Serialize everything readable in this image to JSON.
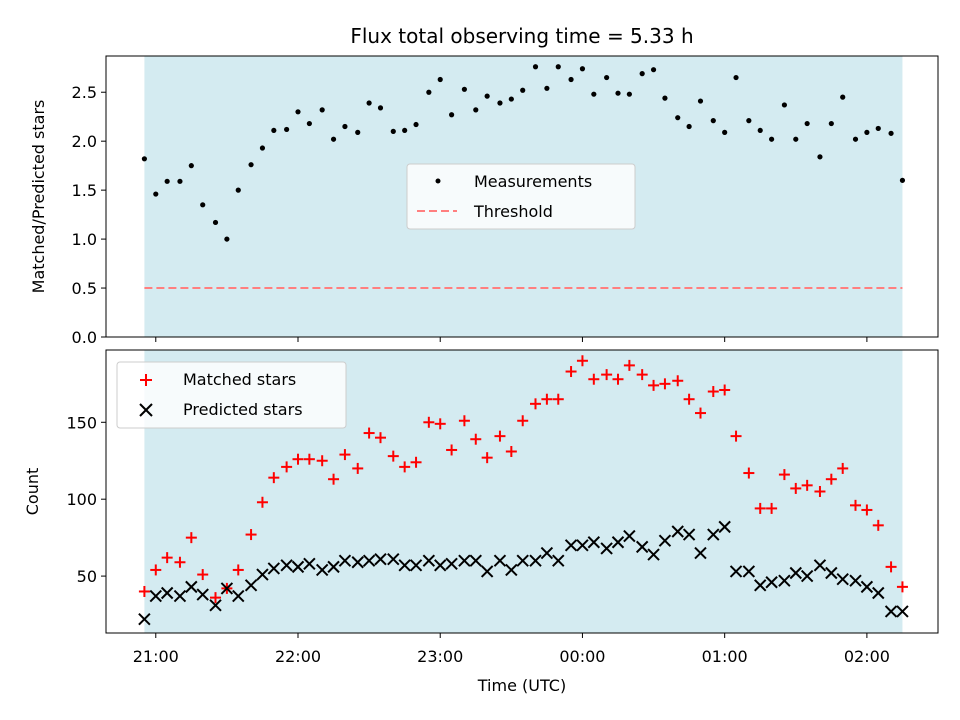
{
  "figure": {
    "title": "Flux total observing time = 5.33 h",
    "xlabel": "Time (UTC)",
    "xticks": [
      "21:00",
      "22:00",
      "23:00",
      "00:00",
      "01:00",
      "02:00"
    ]
  },
  "chart_data": [
    {
      "type": "scatter",
      "name": "ratio",
      "ylabel": "Matched/Predicted stars",
      "ylim": [
        0,
        2.87
      ],
      "yticks": [
        "0.0",
        "0.5",
        "1.0",
        "1.5",
        "2.0",
        "2.5"
      ],
      "xlim_hours": [
        20.65,
        26.5
      ],
      "shade_hours": [
        20.92,
        26.25
      ],
      "shade_color": "#d4ebf1",
      "threshold": 0.5,
      "legend": {
        "placement": "center",
        "measurements": "Measurements",
        "threshold": "Threshold"
      },
      "x_hours": [
        20.92,
        21.0,
        21.08,
        21.17,
        21.25,
        21.33,
        21.42,
        21.5,
        21.58,
        21.67,
        21.75,
        21.83,
        21.92,
        22.0,
        22.08,
        22.17,
        22.25,
        22.33,
        22.42,
        22.5,
        22.58,
        22.67,
        22.75,
        22.83,
        22.92,
        23.0,
        23.08,
        23.17,
        23.25,
        23.33,
        23.42,
        23.5,
        23.58,
        23.67,
        23.75,
        23.83,
        23.92,
        24.0,
        24.08,
        24.17,
        24.25,
        24.33,
        24.42,
        24.5,
        24.58,
        24.67,
        24.75,
        24.83,
        24.92,
        25.0,
        25.08,
        25.17,
        25.25,
        25.33,
        25.42,
        25.5,
        25.58,
        25.67,
        25.75,
        25.83,
        25.92,
        26.0,
        26.08,
        26.17,
        26.25
      ],
      "values": [
        1.82,
        1.46,
        1.59,
        1.59,
        1.75,
        1.35,
        1.17,
        1.0,
        1.5,
        1.76,
        1.93,
        2.11,
        2.12,
        2.3,
        2.18,
        2.32,
        2.02,
        2.15,
        2.09,
        2.39,
        2.34,
        2.1,
        2.11,
        2.17,
        2.5,
        2.63,
        2.27,
        2.53,
        2.32,
        2.46,
        2.39,
        2.43,
        2.52,
        2.76,
        2.54,
        2.76,
        2.63,
        2.74,
        2.48,
        2.65,
        2.49,
        2.48,
        2.69,
        2.73,
        2.44,
        2.24,
        2.15,
        2.41,
        2.21,
        2.09,
        2.65,
        2.21,
        2.11,
        2.02,
        2.37,
        2.02,
        2.18,
        1.84,
        2.18,
        2.45,
        2.02,
        2.09,
        2.13,
        2.08,
        1.6
      ],
      "colors": {
        "points": "#000000",
        "threshold": "#ff7f7f"
      }
    },
    {
      "type": "scatter",
      "name": "counts",
      "ylabel": "Count",
      "ylim": [
        13,
        197
      ],
      "yticks": [
        "50",
        "100",
        "150"
      ],
      "legend": {
        "placement": "top-left",
        "matched": "Matched stars",
        "predicted": "Predicted stars"
      },
      "x_hours": [
        20.92,
        21.0,
        21.08,
        21.17,
        21.25,
        21.33,
        21.42,
        21.5,
        21.58,
        21.67,
        21.75,
        21.83,
        21.92,
        22.0,
        22.08,
        22.17,
        22.25,
        22.33,
        22.42,
        22.5,
        22.58,
        22.67,
        22.75,
        22.83,
        22.92,
        23.0,
        23.08,
        23.17,
        23.25,
        23.33,
        23.42,
        23.5,
        23.58,
        23.67,
        23.75,
        23.83,
        23.92,
        24.0,
        24.08,
        24.17,
        24.25,
        24.33,
        24.42,
        24.5,
        24.58,
        24.67,
        24.75,
        24.83,
        24.92,
        25.0,
        25.08,
        25.17,
        25.25,
        25.33,
        25.42,
        25.5,
        25.58,
        25.67,
        25.75,
        25.83,
        25.92,
        26.0,
        26.08,
        26.17,
        26.25
      ],
      "series": [
        {
          "values": [
            40,
            54,
            62,
            59,
            75,
            51,
            36,
            42,
            54,
            77,
            98,
            114,
            121,
            126,
            126,
            125,
            113,
            129,
            120,
            143,
            140,
            128,
            121,
            124,
            150,
            149,
            132,
            151,
            139,
            127,
            141,
            131,
            151,
            162,
            165,
            165,
            183,
            190,
            178,
            181,
            178,
            187,
            181,
            174,
            175,
            177,
            165,
            156,
            170,
            171,
            141,
            117,
            94,
            94,
            116,
            107,
            109,
            105,
            113,
            120,
            96,
            93,
            83,
            56,
            43
          ],
          "marker": "plus",
          "color": "#ff0000"
        },
        {
          "values": [
            22,
            37,
            39,
            37,
            43,
            38,
            31,
            42,
            37,
            44,
            51,
            55,
            57,
            56,
            58,
            54,
            56,
            60,
            59,
            60,
            61,
            61,
            57,
            57,
            60,
            57,
            58,
            60,
            60,
            53,
            60,
            54,
            60,
            60,
            65,
            60,
            70,
            70,
            72,
            68,
            72,
            76,
            69,
            64,
            73,
            79,
            77,
            65,
            77,
            82,
            53,
            53,
            44,
            46,
            47,
            52,
            50,
            57,
            52,
            48,
            47,
            43,
            39,
            27,
            27
          ],
          "marker": "x",
          "color": "#000000"
        }
      ]
    }
  ]
}
